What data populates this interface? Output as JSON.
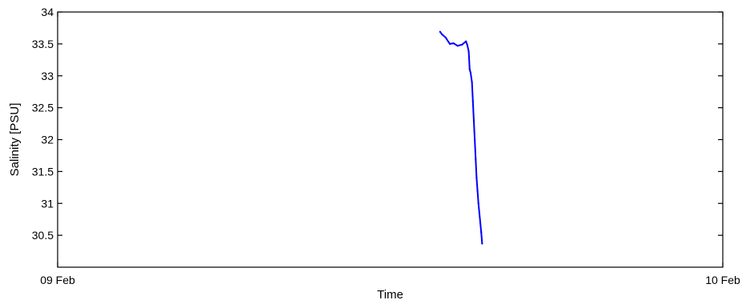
{
  "chart_data": {
    "type": "line",
    "xlabel": "Time",
    "ylabel": "Salinity [PSU]",
    "xlim": [
      "09 Feb 00:00",
      "10 Feb 00:00"
    ],
    "ylim": [
      30,
      34
    ],
    "x_ticks": [
      "09 Feb",
      "10 Feb"
    ],
    "y_ticks": [
      "30.5",
      "31",
      "31.5",
      "32",
      "32.5",
      "33",
      "33.5",
      "34"
    ],
    "grid": false,
    "series_color": "#0000ff",
    "axis_color": "#000000",
    "series": [
      {
        "x": [
          "09 Feb 13:48",
          "09 Feb 13:52",
          "09 Feb 14:00",
          "09 Feb 14:09",
          "09 Feb 14:17",
          "09 Feb 14:26",
          "09 Feb 14:36",
          "09 Feb 14:44",
          "09 Feb 14:47",
          "09 Feb 14:50",
          "09 Feb 14:52",
          "09 Feb 14:54",
          "09 Feb 14:57",
          "09 Feb 14:59",
          "09 Feb 15:01",
          "09 Feb 15:03",
          "09 Feb 15:05",
          "09 Feb 15:07",
          "09 Feb 15:09",
          "09 Feb 15:11",
          "09 Feb 15:13",
          "09 Feb 15:15",
          "09 Feb 15:17",
          "09 Feb 15:19"
        ],
        "values": [
          33.69,
          33.65,
          33.6,
          33.5,
          33.51,
          33.47,
          33.49,
          33.54,
          33.48,
          33.38,
          33.1,
          33.05,
          32.9,
          32.6,
          32.3,
          32.0,
          31.7,
          31.4,
          31.2,
          31.0,
          30.85,
          30.7,
          30.55,
          30.37
        ]
      }
    ]
  }
}
